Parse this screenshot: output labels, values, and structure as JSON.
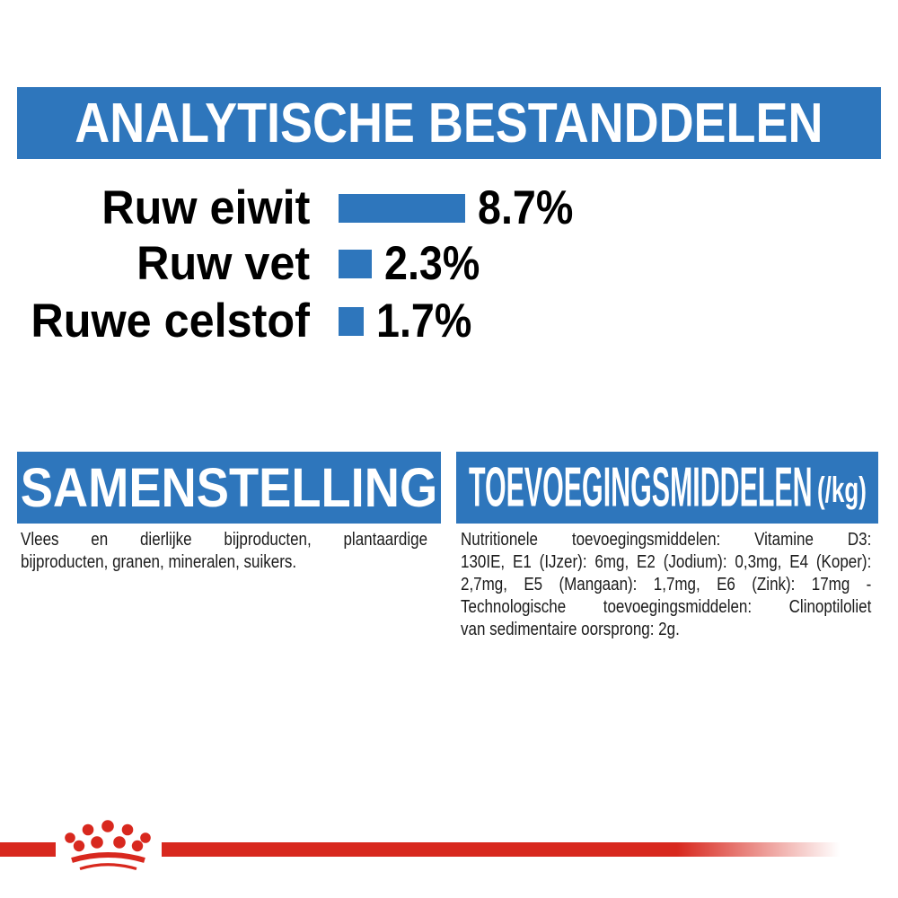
{
  "colors": {
    "blue": "#2e76bc",
    "red": "#d8281e",
    "text": "#1b1b1b",
    "background": "#ffffff"
  },
  "header": {
    "title": "ANALYTISCHE BESTANDDELEN"
  },
  "chart_data": {
    "type": "bar",
    "orientation": "horizontal",
    "title": "ANALYTISCHE BESTANDDELEN",
    "categories": [
      "Ruw eiwit",
      "Ruw vet",
      "Ruwe celstof"
    ],
    "values": [
      8.7,
      2.3,
      1.7
    ],
    "value_labels": [
      "8.7%",
      "2.3%",
      "1.7%"
    ],
    "unit": "%",
    "xlim": [
      0,
      8.7
    ],
    "bar_color": "#2e76bc",
    "grid": false,
    "legend": false
  },
  "sections": {
    "samenstelling": {
      "title": "SAMENSTELLING",
      "body_lines": [
        "Vlees en dierlijke bijproducten, plantaardige",
        "bijproducten, granen, mineralen, suikers."
      ]
    },
    "toevoegingsmiddelen": {
      "title": "TOEVOEGINGSMIDDELEN",
      "title_suffix": "(/kg)",
      "body_lines": [
        "Nutritionele toevoegingsmiddelen: Vitamine D3:",
        "130IE, E1 (IJzer): 6mg, E2 (Jodium): 0,3mg, E4 (Koper):",
        "2,7mg, E5 (Mangaan): 1,7mg, E6 (Zink): 17mg -",
        "Technologische toevoegingsmiddelen: Clinoptiloliet",
        "van sedimentaire oorsprong: 2g."
      ]
    }
  },
  "footer": {
    "logo": "royal-canin-crown-paw-logo"
  }
}
